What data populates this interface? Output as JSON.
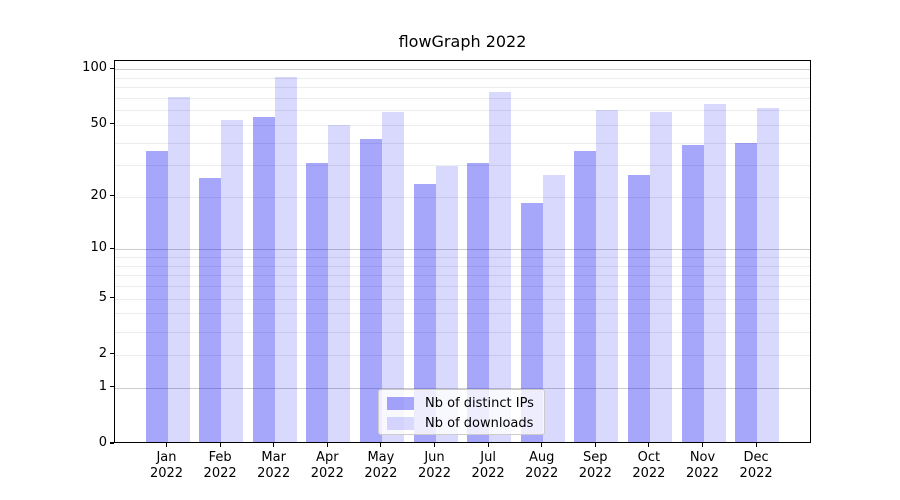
{
  "chart_data": {
    "type": "bar",
    "title": "flowGraph 2022",
    "categories": [
      "Jan",
      "Feb",
      "Mar",
      "Apr",
      "May",
      "Jun",
      "Jul",
      "Aug",
      "Sep",
      "Oct",
      "Nov",
      "Dec"
    ],
    "year_label": "2022",
    "series": [
      {
        "name": "Nb of distinct IPs",
        "color": "#a6a6fa",
        "rgba": "rgba(0,0,240,0.35)",
        "values": [
          35,
          25,
          54,
          30,
          41,
          23,
          30,
          18,
          35,
          26,
          38,
          39
        ]
      },
      {
        "name": "Nb of downloads",
        "color": "#d9d9fc",
        "rgba": "rgba(0,0,240,0.15)",
        "values": [
          69,
          52,
          89,
          49,
          57,
          29,
          74,
          26,
          59,
          57,
          63,
          60
        ]
      }
    ],
    "yscale": "log1p",
    "ylim": [
      0,
      100
    ],
    "yticks": [
      0,
      1,
      2,
      5,
      10,
      20,
      50,
      100
    ],
    "yticks_major": [
      1,
      10,
      100
    ],
    "yticks_minor": [
      2,
      3,
      4,
      5,
      6,
      7,
      8,
      9,
      20,
      30,
      40,
      50,
      60,
      70,
      80,
      90
    ],
    "grid": "on",
    "legend_position": "lower center",
    "xlabel": "",
    "ylabel": ""
  },
  "colors": {
    "grid_major": "#cccccc",
    "grid_minor": "#ececec",
    "spine": "#000000",
    "background": "#ffffff"
  }
}
